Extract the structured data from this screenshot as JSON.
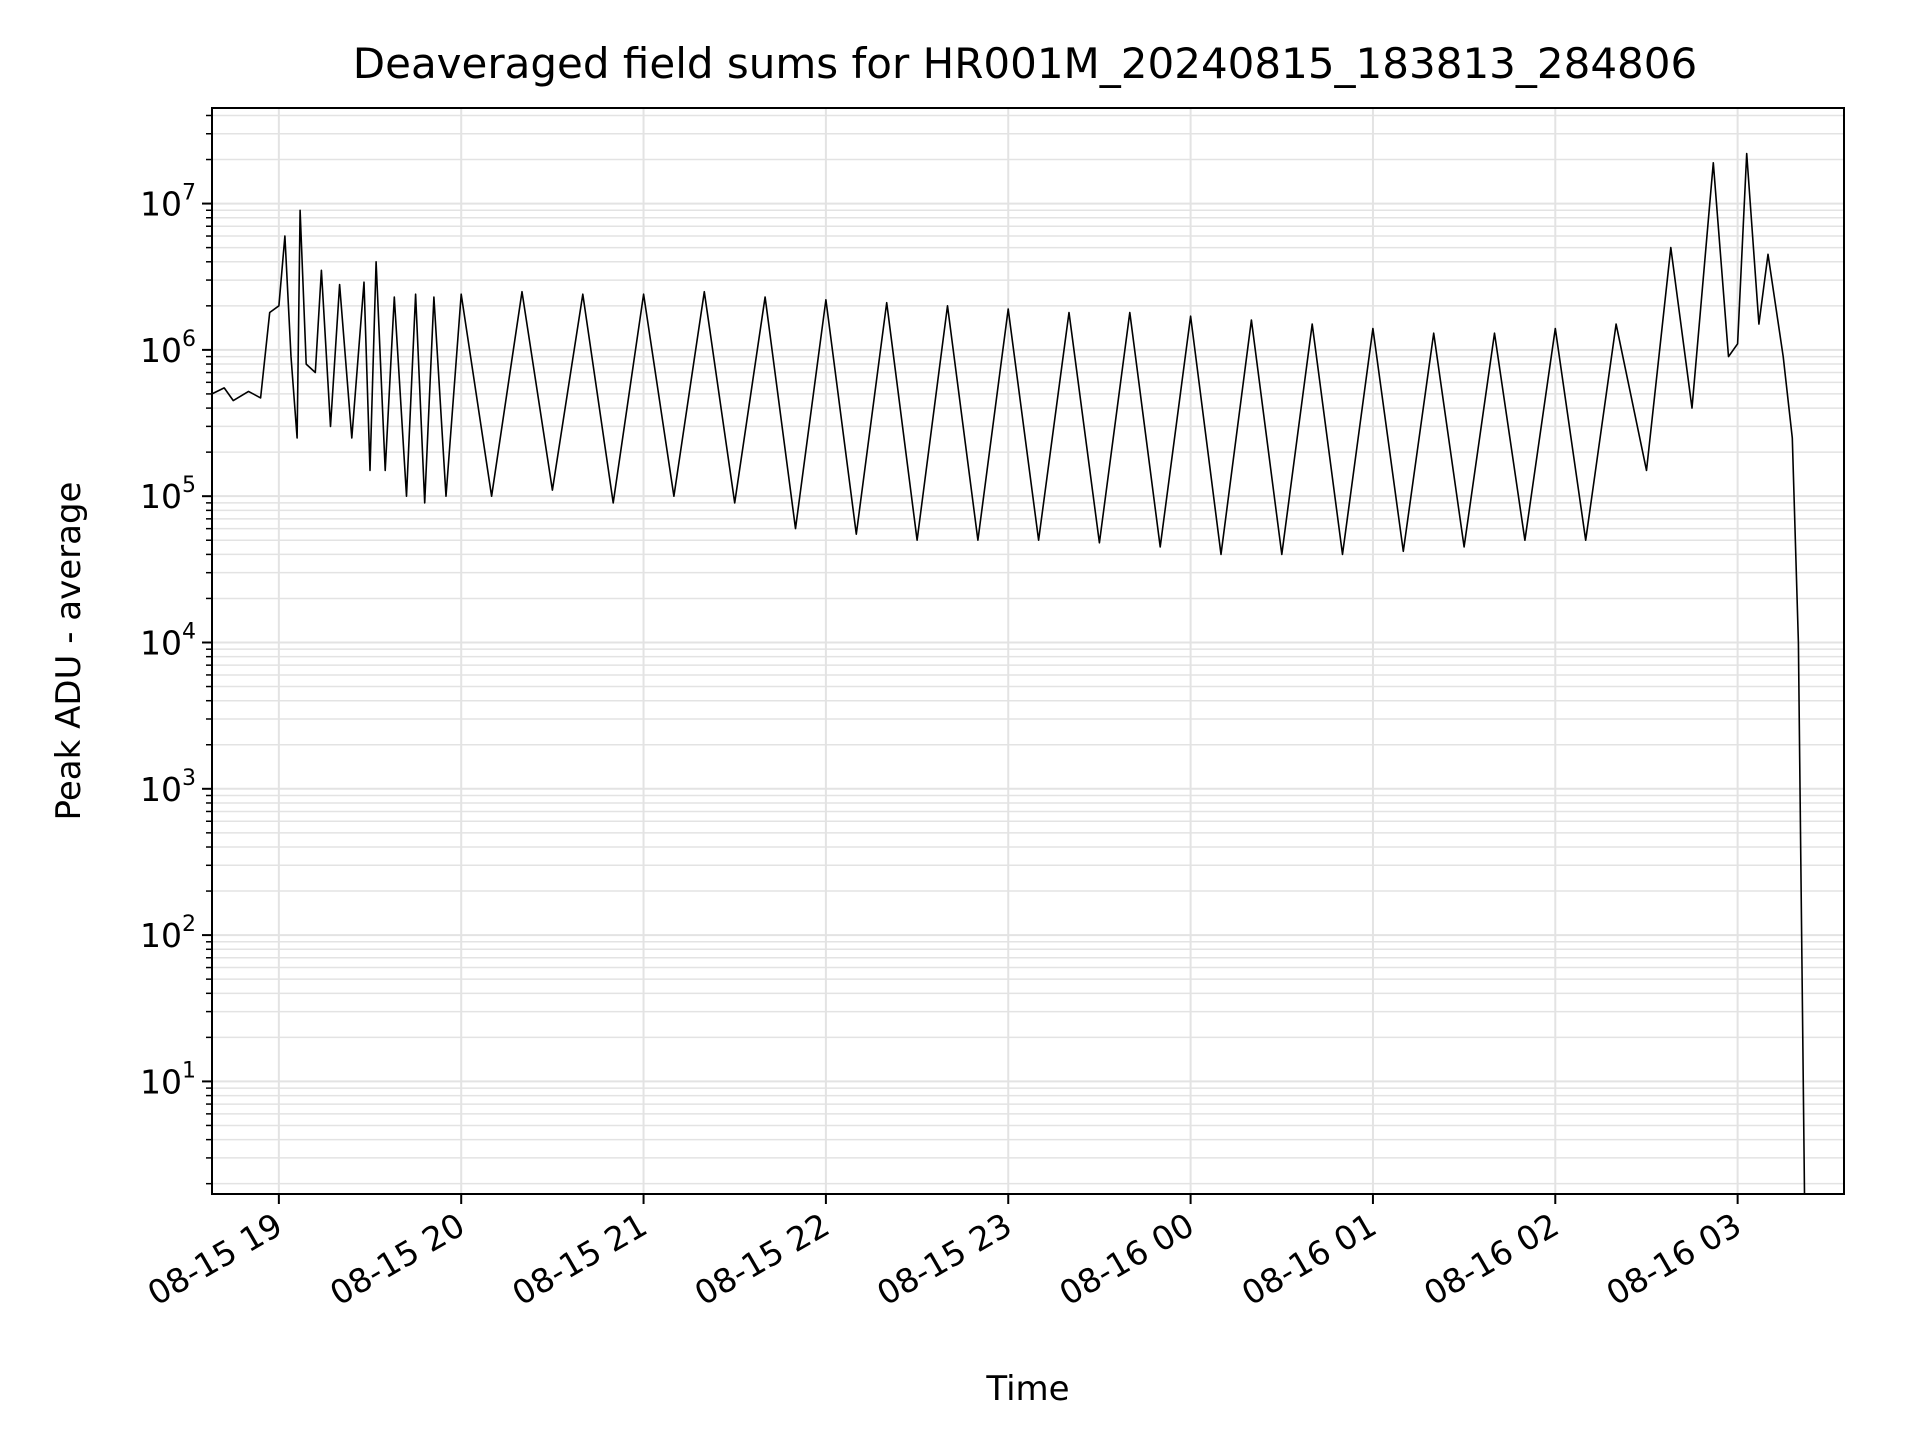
{
  "chart_data": {
    "type": "line",
    "title": "Deaveraged field sums for HR001M_20240815_183813_284806",
    "xlabel": "Time",
    "ylabel": "Peak ADU - average",
    "yscale": "log",
    "ylim": [
      1.7,
      45000000
    ],
    "xlim": [
      "08-15 18:38",
      "08-16 03:35"
    ],
    "x_ticks": [
      "08-15 19",
      "08-15 20",
      "08-15 21",
      "08-15 22",
      "08-15 23",
      "08-16 00",
      "08-16 01",
      "08-16 02",
      "08-16 03"
    ],
    "y_ticks": [
      {
        "base": "10",
        "exp": "1"
      },
      {
        "base": "10",
        "exp": "2"
      },
      {
        "base": "10",
        "exp": "3"
      },
      {
        "base": "10",
        "exp": "4"
      },
      {
        "base": "10",
        "exp": "5"
      },
      {
        "base": "10",
        "exp": "6"
      },
      {
        "base": "10",
        "exp": "7"
      }
    ],
    "grid": true,
    "line_color": "#000000",
    "grid_color": "#e3e3e3",
    "series": [
      {
        "points": [
          [
            "08-15 18:38",
            500000
          ],
          [
            "08-15 18:42",
            550000
          ],
          [
            "08-15 18:45",
            450000
          ],
          [
            "08-15 18:50",
            520000
          ],
          [
            "08-15 18:54",
            470000
          ],
          [
            "08-15 18:57",
            1800000
          ],
          [
            "08-15 19:00",
            2000000
          ],
          [
            "08-15 19:02",
            6000000
          ],
          [
            "08-15 19:04",
            900000
          ],
          [
            "08-15 19:06",
            250000
          ],
          [
            "08-15 19:07",
            9000000
          ],
          [
            "08-15 19:09",
            800000
          ],
          [
            "08-15 19:12",
            700000
          ],
          [
            "08-15 19:14",
            3500000
          ],
          [
            "08-15 19:17",
            300000
          ],
          [
            "08-15 19:20",
            2800000
          ],
          [
            "08-15 19:24",
            250000
          ],
          [
            "08-15 19:28",
            2900000
          ],
          [
            "08-15 19:30",
            150000
          ],
          [
            "08-15 19:32",
            4000000
          ],
          [
            "08-15 19:35",
            150000
          ],
          [
            "08-15 19:38",
            2300000
          ],
          [
            "08-15 19:42",
            100000
          ],
          [
            "08-15 19:45",
            2400000
          ],
          [
            "08-15 19:48",
            90000
          ],
          [
            "08-15 19:51",
            2300000
          ],
          [
            "08-15 19:55",
            100000
          ],
          [
            "08-15 20:00",
            2400000
          ],
          [
            "08-15 20:10",
            100000
          ],
          [
            "08-15 20:20",
            2500000
          ],
          [
            "08-15 20:30",
            110000
          ],
          [
            "08-15 20:40",
            2400000
          ],
          [
            "08-15 20:50",
            90000
          ],
          [
            "08-15 21:00",
            2400000
          ],
          [
            "08-15 21:10",
            100000
          ],
          [
            "08-15 21:20",
            2500000
          ],
          [
            "08-15 21:30",
            90000
          ],
          [
            "08-15 21:40",
            2300000
          ],
          [
            "08-15 21:50",
            60000
          ],
          [
            "08-15 22:00",
            2200000
          ],
          [
            "08-15 22:10",
            55000
          ],
          [
            "08-15 22:20",
            2100000
          ],
          [
            "08-15 22:30",
            50000
          ],
          [
            "08-15 22:40",
            2000000
          ],
          [
            "08-15 22:50",
            50000
          ],
          [
            "08-15 23:00",
            1900000
          ],
          [
            "08-15 23:10",
            50000
          ],
          [
            "08-15 23:20",
            1800000
          ],
          [
            "08-15 23:30",
            48000
          ],
          [
            "08-15 23:40",
            1800000
          ],
          [
            "08-15 23:50",
            45000
          ],
          [
            "08-16 00:00",
            1700000
          ],
          [
            "08-16 00:10",
            40000
          ],
          [
            "08-16 00:20",
            1600000
          ],
          [
            "08-16 00:30",
            40000
          ],
          [
            "08-16 00:40",
            1500000
          ],
          [
            "08-16 00:50",
            40000
          ],
          [
            "08-16 01:00",
            1400000
          ],
          [
            "08-16 01:10",
            42000
          ],
          [
            "08-16 01:20",
            1300000
          ],
          [
            "08-16 01:30",
            45000
          ],
          [
            "08-16 01:40",
            1300000
          ],
          [
            "08-16 01:50",
            50000
          ],
          [
            "08-16 02:00",
            1400000
          ],
          [
            "08-16 02:10",
            50000
          ],
          [
            "08-16 02:20",
            1500000
          ],
          [
            "08-16 02:30",
            150000
          ],
          [
            "08-16 02:38",
            5000000
          ],
          [
            "08-16 02:45",
            400000
          ],
          [
            "08-16 02:52",
            19000000
          ],
          [
            "08-16 02:57",
            900000
          ],
          [
            "08-16 03:00",
            1100000
          ],
          [
            "08-16 03:03",
            22000000
          ],
          [
            "08-16 03:07",
            1500000
          ],
          [
            "08-16 03:10",
            4500000
          ],
          [
            "08-16 03:15",
            900000
          ],
          [
            "08-16 03:18",
            250000
          ],
          [
            "08-16 03:20",
            10000
          ],
          [
            "08-16 03:22",
            1.7
          ]
        ]
      }
    ]
  }
}
